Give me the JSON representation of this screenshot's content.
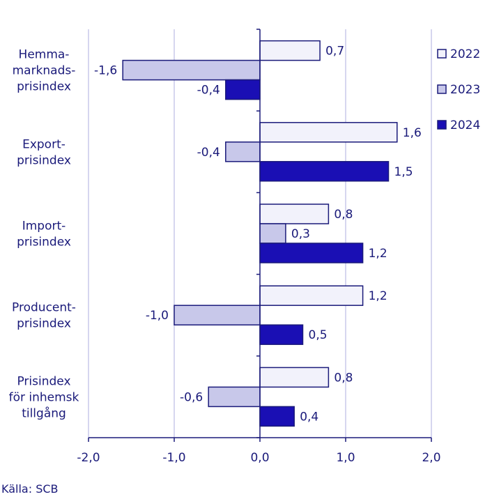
{
  "chart_data": {
    "type": "bar",
    "orientation": "horizontal",
    "categories": [
      [
        "Hemma-",
        "marknads-",
        "prisindex"
      ],
      [
        "Export-",
        "prisindex"
      ],
      [
        "Import-",
        "prisindex"
      ],
      [
        "Producent-",
        "prisindex"
      ],
      [
        "Prisindex",
        "för inhemsk",
        "tillgång"
      ]
    ],
    "series": [
      {
        "name": "2022",
        "color": "#f2f2fb",
        "values": [
          0.7,
          1.6,
          0.8,
          1.2,
          0.8
        ],
        "labels": [
          "0,7",
          "1,6",
          "0,8",
          "1,2",
          "0,8"
        ]
      },
      {
        "name": "2023",
        "color": "#c8c8ea",
        "values": [
          -1.6,
          -0.4,
          0.3,
          -1.0,
          -0.6
        ],
        "labels": [
          "-1,6",
          "-0,4",
          "0,3",
          "-1,0",
          "-0,6"
        ]
      },
      {
        "name": "2024",
        "color": "#1a0fb4",
        "values": [
          -0.4,
          1.5,
          1.2,
          0.5,
          0.4
        ],
        "labels": [
          "-0,4",
          "1,5",
          "1,2",
          "0,5",
          "0,4"
        ]
      }
    ],
    "xlim": [
      -2.0,
      2.0
    ],
    "xticks": [
      -2.0,
      -1.0,
      0.0,
      1.0,
      2.0
    ],
    "xtick_labels": [
      "-2,0",
      "-1,0",
      "0,0",
      "1,0",
      "2,0"
    ],
    "grid": "vertical",
    "legend_position": "right",
    "bar_outline_color": "#1a1a7a",
    "grid_color": "#c8c8ea",
    "text_color": "#1a1a7a"
  },
  "source": "Källa: SCB"
}
